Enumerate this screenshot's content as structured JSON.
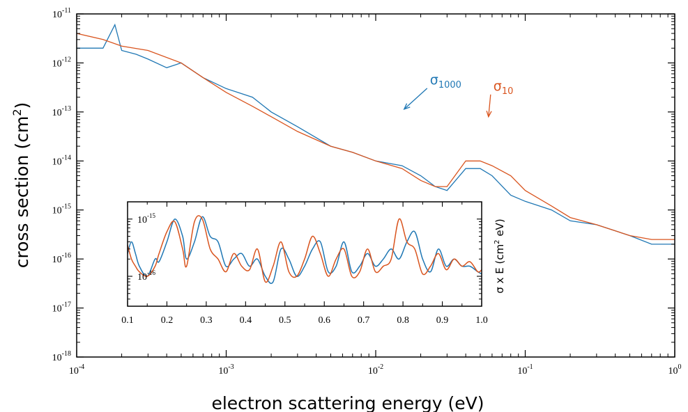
{
  "chart_data": [
    {
      "type": "line",
      "xlabel": "electron scattering energy (eV)",
      "ylabel": "cross section (cm",
      "ylabel_sup": "2",
      "ylabel_tail": ")",
      "x_scale": "log",
      "y_scale": "log",
      "xlim": [
        0.0001,
        1
      ],
      "ylim": [
        1e-18,
        1e-11
      ],
      "x_ticks": [
        {
          "base": "10",
          "exp": "-4"
        },
        {
          "base": "10",
          "exp": "-3"
        },
        {
          "base": "10",
          "exp": "-2"
        },
        {
          "base": "10",
          "exp": "-1"
        },
        {
          "base": "10",
          "exp": "0"
        }
      ],
      "y_ticks": [
        {
          "base": "10",
          "exp": "-18"
        },
        {
          "base": "10",
          "exp": "-17"
        },
        {
          "base": "10",
          "exp": "-16"
        },
        {
          "base": "10",
          "exp": "-15"
        },
        {
          "base": "10",
          "exp": "-14"
        },
        {
          "base": "10",
          "exp": "-13"
        },
        {
          "base": "10",
          "exp": "-12"
        },
        {
          "base": "10",
          "exp": "-11"
        }
      ],
      "grid": false,
      "series": [
        {
          "name_symbol": "σ",
          "name_sub": "1000",
          "color": "#1f77b4",
          "x": [
            0.0001,
            0.00015,
            0.00018,
            0.0002,
            0.00025,
            0.0003,
            0.0004,
            0.0005,
            0.0007,
            0.001,
            0.0015,
            0.002,
            0.003,
            0.005,
            0.007,
            0.01,
            0.015,
            0.02,
            0.025,
            0.03,
            0.04,
            0.05,
            0.06,
            0.08,
            0.1,
            0.15,
            0.2,
            0.3,
            0.5,
            0.7,
            1.0
          ],
          "y": [
            2e-12,
            2e-12,
            6e-12,
            1.8e-12,
            1.5e-12,
            1.2e-12,
            8e-13,
            1e-12,
            5e-13,
            3e-13,
            2e-13,
            1e-13,
            5e-14,
            2e-14,
            1.5e-14,
            1e-14,
            8e-15,
            5e-15,
            3e-15,
            2.5e-15,
            7e-15,
            7e-15,
            5e-15,
            2e-15,
            1.5e-15,
            1e-15,
            6e-16,
            5e-16,
            3e-16,
            2e-16,
            2e-16
          ]
        },
        {
          "name_symbol": "σ",
          "name_sub": "10",
          "color": "#d9541e",
          "x": [
            0.0001,
            0.00015,
            0.0002,
            0.0003,
            0.0005,
            0.0007,
            0.001,
            0.0015,
            0.002,
            0.003,
            0.005,
            0.007,
            0.01,
            0.015,
            0.02,
            0.025,
            0.03,
            0.04,
            0.05,
            0.06,
            0.08,
            0.1,
            0.15,
            0.2,
            0.3,
            0.5,
            0.7,
            1.0
          ],
          "y": [
            4e-12,
            3e-12,
            2.2e-12,
            1.8e-12,
            1e-12,
            5e-13,
            2.5e-13,
            1.3e-13,
            8e-14,
            4e-14,
            2e-14,
            1.5e-14,
            1e-14,
            7e-15,
            4e-15,
            3e-15,
            3e-15,
            1e-14,
            1e-14,
            8e-15,
            5e-15,
            2.5e-15,
            1.2e-15,
            7e-16,
            5e-16,
            3e-16,
            2.5e-16,
            2.5e-16
          ]
        }
      ],
      "annotations": [
        {
          "symbol": "σ",
          "sub": "1000",
          "color": "#1f77b4",
          "points_to_x": 0.015,
          "points_to_y": 1e-13
        },
        {
          "symbol": "σ",
          "sub": "10",
          "color": "#d9541e",
          "points_to_x": 0.055,
          "points_to_y": 7e-14
        }
      ]
    },
    {
      "type": "line",
      "inset": true,
      "xlabel": "",
      "ylabel": "σ x E (cm",
      "ylabel_sup": "2",
      "ylabel_tail": " eV)",
      "x_scale": "linear",
      "y_scale": "log",
      "xlim": [
        0.1,
        1.0
      ],
      "ylim": [
        3e-17,
        2e-15
      ],
      "x_ticks": [
        "0.1",
        "0.2",
        "0.3",
        "0.4",
        "0.5",
        "0.6",
        "0.7",
        "0.8",
        "0.9",
        "1.0"
      ],
      "y_ticks": [
        {
          "base": "10",
          "exp": "-16"
        },
        {
          "base": "10",
          "exp": "-15"
        }
      ],
      "grid": false,
      "series": [
        {
          "color": "#1f77b4",
          "x": [
            0.1,
            0.11,
            0.12,
            0.13,
            0.15,
            0.17,
            0.18,
            0.2,
            0.22,
            0.24,
            0.25,
            0.27,
            0.29,
            0.31,
            0.33,
            0.35,
            0.37,
            0.39,
            0.41,
            0.43,
            0.45,
            0.47,
            0.49,
            0.51,
            0.53,
            0.55,
            0.57,
            0.59,
            0.61,
            0.63,
            0.65,
            0.67,
            0.69,
            0.71,
            0.73,
            0.75,
            0.77,
            0.79,
            0.81,
            0.83,
            0.85,
            0.87,
            0.89,
            0.91,
            0.93,
            0.95,
            0.97,
            0.99,
            1.0
          ],
          "y": [
            2.5e-16,
            4e-16,
            2.5e-16,
            1.5e-16,
            1e-16,
            2e-16,
            1.8e-16,
            4e-16,
            1e-15,
            5e-16,
            2e-16,
            4e-16,
            1.1e-15,
            5e-16,
            4e-16,
            1.5e-16,
            2e-16,
            2.5e-16,
            1.5e-16,
            2e-16,
            1e-16,
            8e-17,
            3e-16,
            2e-16,
            1e-16,
            1.5e-16,
            3e-16,
            4e-16,
            1.2e-16,
            1.5e-16,
            4e-16,
            1.2e-16,
            1.5e-16,
            2.5e-16,
            1.5e-16,
            2e-16,
            3e-16,
            2e-16,
            4e-16,
            6e-16,
            2e-16,
            1.2e-16,
            3e-16,
            1.5e-16,
            2e-16,
            1.5e-16,
            1.5e-16,
            1.2e-16,
            1.1e-16
          ]
        },
        {
          "color": "#d9541e",
          "x": [
            0.1,
            0.11,
            0.12,
            0.13,
            0.15,
            0.17,
            0.18,
            0.2,
            0.22,
            0.24,
            0.25,
            0.27,
            0.29,
            0.31,
            0.33,
            0.35,
            0.37,
            0.39,
            0.41,
            0.43,
            0.45,
            0.47,
            0.49,
            0.51,
            0.53,
            0.55,
            0.57,
            0.59,
            0.61,
            0.63,
            0.65,
            0.67,
            0.69,
            0.71,
            0.73,
            0.75,
            0.77,
            0.79,
            0.81,
            0.83,
            0.85,
            0.87,
            0.89,
            0.91,
            0.93,
            0.95,
            0.97,
            0.99,
            1.0
          ],
          "y": [
            3.5e-16,
            2e-16,
            1.5e-16,
            1.2e-16,
            1e-16,
            1.5e-16,
            2.5e-16,
            6e-16,
            9e-16,
            3e-16,
            1.5e-16,
            9e-16,
            1e-15,
            3e-16,
            2e-16,
            1.2e-16,
            2.5e-16,
            1.5e-16,
            1.3e-16,
            3e-16,
            8e-17,
            1.5e-16,
            4e-16,
            1.2e-16,
            1e-16,
            2e-16,
            5e-16,
            2.5e-16,
            1e-16,
            2e-16,
            3e-16,
            1e-16,
            1.2e-16,
            3e-16,
            1.2e-16,
            1.5e-16,
            2e-16,
            1e-15,
            4e-16,
            3e-16,
            1.1e-16,
            1.5e-16,
            2.5e-16,
            1.3e-16,
            2e-16,
            1.5e-16,
            1.8e-16,
            1.2e-16,
            1.3e-16
          ]
        }
      ]
    }
  ]
}
